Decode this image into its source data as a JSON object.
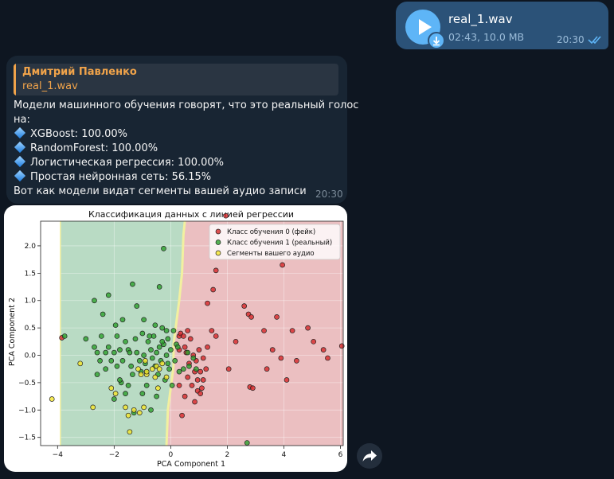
{
  "outgoing": {
    "file_name": "real_1.wav",
    "meta": "02:43, 10.0 MB",
    "time": "20:30"
  },
  "incoming": {
    "reply_name": "Дмитрий Павленко",
    "reply_file": "real_1.wav",
    "text_intro": "Модели машинного обучения говорят, что это реальный голос",
    "text_intro2": "на:",
    "results": [
      "XGBoost: 100.00%",
      "RandomForest: 100.00%",
      "Логистическая регрессия: 100.00%",
      "Простая нейронная сеть: 56.15%"
    ],
    "text_outro": "Вот как модели видат сегменты вашей аудио записи",
    "time": "20:30"
  },
  "colors": {
    "background": "#0e1621",
    "outgoing_bubble": "#2b5278",
    "incoming_bubble": "#182533",
    "accent": "#5eb5f7",
    "reply_accent": "#f0a34a"
  },
  "icons": [
    "play-icon",
    "download-icon",
    "double-check-icon",
    "diamond-icon",
    "share-icon"
  ],
  "chart_data": {
    "type": "scatter",
    "title": "Классификация данных с линией регрессии",
    "xlabel": "PCA Component 1",
    "ylabel": "PCA Component 2",
    "xlim": [
      -4.6,
      6.1
    ],
    "ylim": [
      -1.65,
      2.45
    ],
    "xticks": [
      -4,
      -2,
      0,
      2,
      4,
      6
    ],
    "yticks": [
      -1.5,
      -1.0,
      -0.5,
      0.0,
      0.5,
      1.0,
      1.5,
      2.0
    ],
    "grid": true,
    "legend_position": "top-right",
    "background_regions": [
      {
        "label": "Класс обучения 1 (реальный)",
        "color": "#b9dbc4",
        "side": "left"
      },
      {
        "label": "Класс обучения 0 (фейк)",
        "color": "#ebbfc1",
        "side": "right"
      }
    ],
    "boundary_line": [
      [
        0.5,
        2.45
      ],
      [
        0.45,
        2.2
      ],
      [
        0.4,
        1.5
      ],
      [
        0.3,
        1.0
      ],
      [
        0.2,
        0.6
      ],
      [
        0.1,
        0.2
      ],
      [
        0.1,
        -0.2
      ],
      [
        0.0,
        -0.6
      ],
      [
        -0.1,
        -1.0
      ],
      [
        -0.15,
        -1.65
      ]
    ],
    "series": [
      {
        "name": "Класс обучения 0 (фейк)",
        "color": "#d62728",
        "points": [
          [
            0.3,
            0.35
          ],
          [
            0.5,
            0.15
          ],
          [
            0.55,
            0.05
          ],
          [
            0.65,
            -0.15
          ],
          [
            0.7,
            0.3
          ],
          [
            0.8,
            0.0
          ],
          [
            0.9,
            -0.1
          ],
          [
            1.0,
            0.1
          ],
          [
            1.05,
            -0.3
          ],
          [
            1.15,
            -0.45
          ],
          [
            1.25,
            -0.25
          ],
          [
            0.75,
            -0.55
          ],
          [
            0.95,
            -0.65
          ],
          [
            1.1,
            -0.6
          ],
          [
            0.6,
            -0.4
          ],
          [
            0.5,
            -0.75
          ],
          [
            0.85,
            -0.85
          ],
          [
            0.4,
            -1.1
          ],
          [
            0.35,
            0.4
          ],
          [
            0.6,
            0.45
          ],
          [
            1.3,
            0.15
          ],
          [
            1.45,
            0.45
          ],
          [
            1.6,
            0.35
          ],
          [
            1.3,
            0.95
          ],
          [
            1.5,
            1.2
          ],
          [
            0.85,
            -0.3
          ],
          [
            1.15,
            -0.05
          ],
          [
            2.05,
            -0.25
          ],
          [
            2.3,
            0.25
          ],
          [
            2.6,
            0.9
          ],
          [
            2.75,
            0.75
          ],
          [
            2.85,
            0.7
          ],
          [
            3.3,
            0.45
          ],
          [
            3.6,
            0.1
          ],
          [
            3.4,
            -0.25
          ],
          [
            2.8,
            -0.58
          ],
          [
            2.9,
            -0.6
          ],
          [
            3.75,
            0.7
          ],
          [
            3.9,
            -0.05
          ],
          [
            4.3,
            0.45
          ],
          [
            4.45,
            -0.1
          ],
          [
            4.85,
            0.5
          ],
          [
            5.05,
            0.25
          ],
          [
            5.4,
            0.1
          ],
          [
            5.55,
            -0.05
          ],
          [
            6.05,
            0.17
          ],
          [
            4.1,
            -0.45
          ],
          [
            3.95,
            1.65
          ],
          [
            1.6,
            1.55
          ],
          [
            1.05,
            -0.7
          ],
          [
            0.95,
            -0.45
          ],
          [
            0.45,
            0.35
          ],
          [
            0.3,
            0.1
          ],
          [
            -3.85,
            0.32
          ],
          [
            0.3,
            -0.55
          ],
          [
            1.95,
            2.55
          ]
        ],
        "marker_size": 6
      },
      {
        "name": "Класс обучения 1 (реальный)",
        "color": "#2ca02c",
        "points": [
          [
            -3.75,
            0.35
          ],
          [
            -3.0,
            0.3
          ],
          [
            -2.7,
            0.15
          ],
          [
            -2.6,
            0.05
          ],
          [
            -2.5,
            -0.1
          ],
          [
            -2.45,
            0.35
          ],
          [
            -2.3,
            0.05
          ],
          [
            -2.2,
            0.15
          ],
          [
            -2.1,
            -0.1
          ],
          [
            -2.0,
            0.05
          ],
          [
            -1.9,
            -0.2
          ],
          [
            -1.8,
            0.1
          ],
          [
            -1.7,
            -0.1
          ],
          [
            -1.6,
            0.25
          ],
          [
            -1.5,
            0.1
          ],
          [
            -1.45,
            0.05
          ],
          [
            -1.4,
            -0.2
          ],
          [
            -1.35,
            -0.35
          ],
          [
            -1.25,
            0.3
          ],
          [
            -1.2,
            0.05
          ],
          [
            -1.1,
            -0.1
          ],
          [
            -1.0,
            0.4
          ],
          [
            -0.95,
            0.0
          ],
          [
            -0.9,
            -0.15
          ],
          [
            -0.85,
            -0.3
          ],
          [
            -0.8,
            0.25
          ],
          [
            -0.7,
            0.1
          ],
          [
            -0.65,
            -0.05
          ],
          [
            -0.6,
            0.35
          ],
          [
            -0.55,
            -0.2
          ],
          [
            -0.5,
            0.05
          ],
          [
            -0.45,
            -0.35
          ],
          [
            -0.4,
            0.15
          ],
          [
            -0.35,
            -0.1
          ],
          [
            -0.3,
            0.5
          ],
          [
            -0.25,
            0.2
          ],
          [
            -0.2,
            -0.45
          ],
          [
            -0.15,
            0.0
          ],
          [
            -0.1,
            0.3
          ],
          [
            -0.05,
            -0.25
          ],
          [
            0.0,
            0.1
          ],
          [
            0.05,
            -0.55
          ],
          [
            0.1,
            0.45
          ],
          [
            0.15,
            -0.1
          ],
          [
            0.2,
            0.2
          ],
          [
            -1.2,
            0.9
          ],
          [
            -1.35,
            1.3
          ],
          [
            -0.25,
            1.95
          ],
          [
            -0.4,
            1.25
          ],
          [
            -1.75,
            -0.5
          ],
          [
            -1.5,
            -0.55
          ],
          [
            -2.0,
            -0.8
          ],
          [
            -1.0,
            -0.7
          ],
          [
            -0.5,
            -0.75
          ],
          [
            -0.7,
            -1.0
          ],
          [
            -1.3,
            -1.05
          ],
          [
            -1.6,
            -0.7
          ],
          [
            -1.8,
            -0.45
          ],
          [
            -2.3,
            -0.25
          ],
          [
            -2.6,
            -0.35
          ],
          [
            -1.95,
            0.55
          ],
          [
            -2.7,
            1.0
          ],
          [
            -2.4,
            0.75
          ],
          [
            -2.2,
            1.1
          ],
          [
            -1.7,
            0.65
          ],
          [
            -1.9,
            0.35
          ],
          [
            0.25,
            0.15
          ],
          [
            0.3,
            -0.3
          ],
          [
            0.45,
            -0.25
          ],
          [
            0.6,
            0.05
          ],
          [
            0.65,
            -0.2
          ],
          [
            0.8,
            -0.05
          ],
          [
            0.9,
            -0.25
          ],
          [
            -0.95,
            0.65
          ],
          [
            2.7,
            -1.6
          ],
          [
            -0.75,
            0.35
          ],
          [
            -0.3,
            0.25
          ],
          [
            -0.55,
            0.55
          ],
          [
            -1.05,
            -0.3
          ],
          [
            -0.15,
            0.45
          ],
          [
            -0.85,
            -0.55
          ],
          [
            -0.1,
            -0.15
          ]
        ],
        "marker_size": 6
      },
      {
        "name": "Сегменты вашего аудио",
        "color": "#f5e62a",
        "points": [
          [
            -4.2,
            -0.8
          ],
          [
            -3.2,
            -0.15
          ],
          [
            -2.75,
            -0.95
          ],
          [
            -2.1,
            -0.6
          ],
          [
            -1.95,
            -0.7
          ],
          [
            -1.6,
            -0.95
          ],
          [
            -1.5,
            -1.1
          ],
          [
            -1.45,
            -1.4
          ],
          [
            -1.3,
            -1.0
          ],
          [
            -1.1,
            -1.05
          ],
          [
            -0.95,
            -0.95
          ],
          [
            -0.85,
            -0.35
          ],
          [
            -0.85,
            -0.3
          ],
          [
            -0.65,
            -0.25
          ],
          [
            -0.55,
            -0.4
          ],
          [
            -0.5,
            -0.2
          ],
          [
            -0.45,
            -0.6
          ],
          [
            -0.4,
            -0.25
          ],
          [
            -0.3,
            -0.15
          ],
          [
            -0.15,
            -0.4
          ],
          [
            -1.15,
            -0.25
          ],
          [
            -1.05,
            -0.35
          ],
          [
            -0.9,
            -0.1
          ]
        ],
        "marker_size": 6
      }
    ]
  }
}
